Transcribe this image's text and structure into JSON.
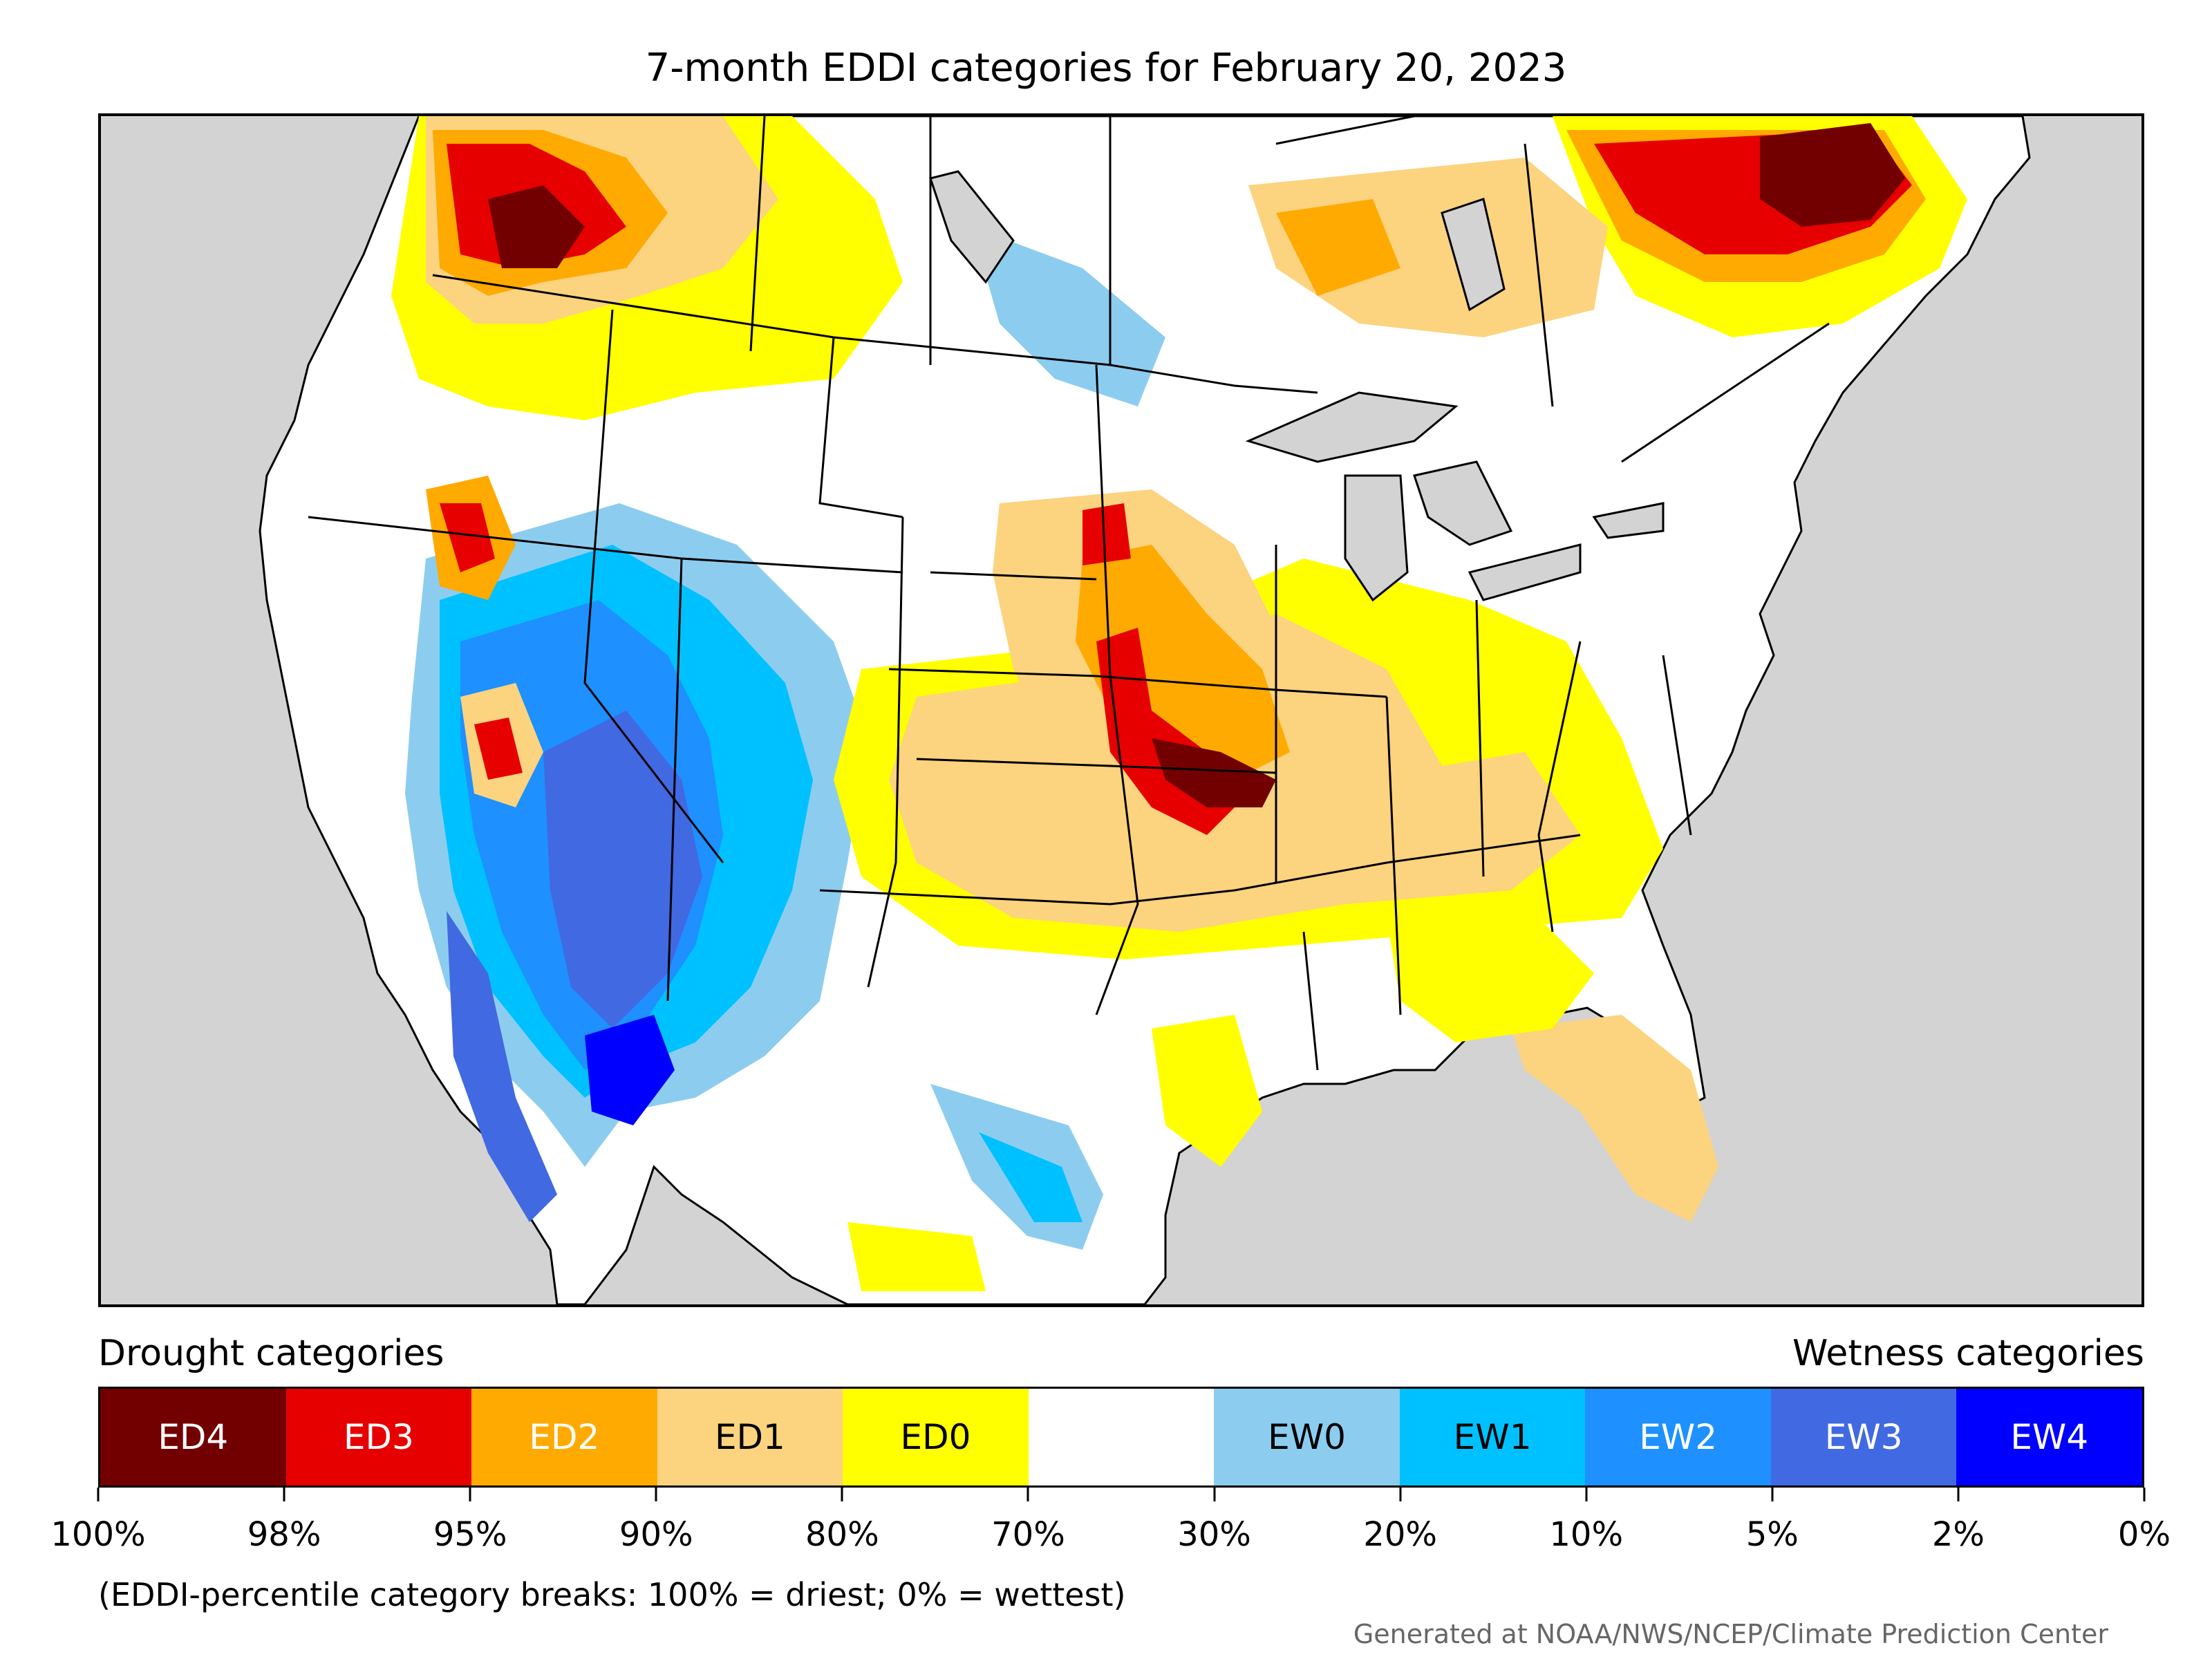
{
  "title": "7-month EDDI categories for February 20, 2023",
  "legend": {
    "drought_label": "Drought categories",
    "wetness_label": "Wetness categories",
    "categories": [
      {
        "label": "ED4",
        "color": "#730000",
        "text_color": "#ffffff"
      },
      {
        "label": "ED3",
        "color": "#e60000",
        "text_color": "#ffffff"
      },
      {
        "label": "ED2",
        "color": "#ffaa00",
        "text_color": "#ffffff"
      },
      {
        "label": "ED1",
        "color": "#fcd37f",
        "text_color": "#000000"
      },
      {
        "label": "ED0",
        "color": "#ffff00",
        "text_color": "#000000"
      },
      {
        "label": "",
        "color": "#ffffff",
        "text_color": "#000000"
      },
      {
        "label": "EW0",
        "color": "#8ccdef",
        "text_color": "#000000"
      },
      {
        "label": "EW1",
        "color": "#00c1ff",
        "text_color": "#000000"
      },
      {
        "label": "EW2",
        "color": "#1e90ff",
        "text_color": "#ffffff"
      },
      {
        "label": "EW3",
        "color": "#4169e1",
        "text_color": "#ffffff"
      },
      {
        "label": "EW4",
        "color": "#0000ff",
        "text_color": "#ffffff"
      }
    ],
    "ticks": [
      "100%",
      "98%",
      "95%",
      "90%",
      "80%",
      "70%",
      "30%",
      "20%",
      "10%",
      "5%",
      "2%",
      "0%"
    ]
  },
  "footnote": "(EDDI-percentile category breaks: 100% = driest; 0% = wettest)",
  "credit": "Generated at NOAA/NWS/NCEP/Climate Prediction Center",
  "map": {
    "ocean_color": "#d3d3d3",
    "land_color": "#ffffff"
  }
}
